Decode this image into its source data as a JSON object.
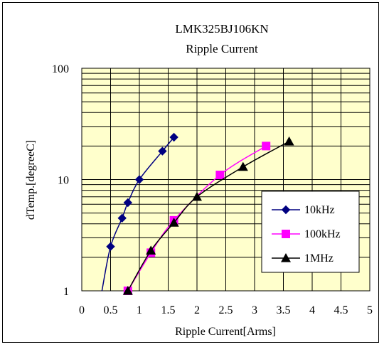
{
  "chart_data": {
    "type": "scatter",
    "title": "LMK325BJ106KN",
    "subtitle": "Ripple Current",
    "xlabel": "Ripple Current[Arms]",
    "ylabel": "dTemp.[degreeC]",
    "xlim": [
      0,
      5
    ],
    "ylim": [
      1,
      100
    ],
    "yscale": "log",
    "x_ticks": [
      "0",
      "0.5",
      "1",
      "1.5",
      "2",
      "2.5",
      "3",
      "3.5",
      "4",
      "4.5",
      "5"
    ],
    "y_ticks": [
      "1",
      "10",
      "100"
    ],
    "grid": true,
    "plot_background": "#ffffcc",
    "legend_position": "lower-right",
    "series": [
      {
        "name": "10kHz",
        "color": "#000080",
        "marker": "diamond",
        "points": [
          [
            0.35,
            1.0
          ],
          [
            0.5,
            2.5
          ],
          [
            0.7,
            4.5
          ],
          [
            0.8,
            6.2
          ],
          [
            1.0,
            10.0
          ],
          [
            1.4,
            18.0
          ],
          [
            1.6,
            24.0
          ]
        ]
      },
      {
        "name": "100kHz",
        "color": "#ff00ff",
        "marker": "square",
        "points": [
          [
            0.8,
            1.0
          ],
          [
            1.2,
            2.2
          ],
          [
            1.6,
            4.3
          ],
          [
            2.4,
            11.0
          ],
          [
            3.2,
            20.0
          ]
        ]
      },
      {
        "name": "1MHz",
        "color": "#000000",
        "marker": "triangle",
        "points": [
          [
            0.8,
            1.0
          ],
          [
            1.2,
            2.3
          ],
          [
            1.6,
            4.1
          ],
          [
            2.0,
            7.0
          ],
          [
            2.8,
            13.0
          ],
          [
            3.6,
            22.0
          ]
        ]
      }
    ]
  }
}
